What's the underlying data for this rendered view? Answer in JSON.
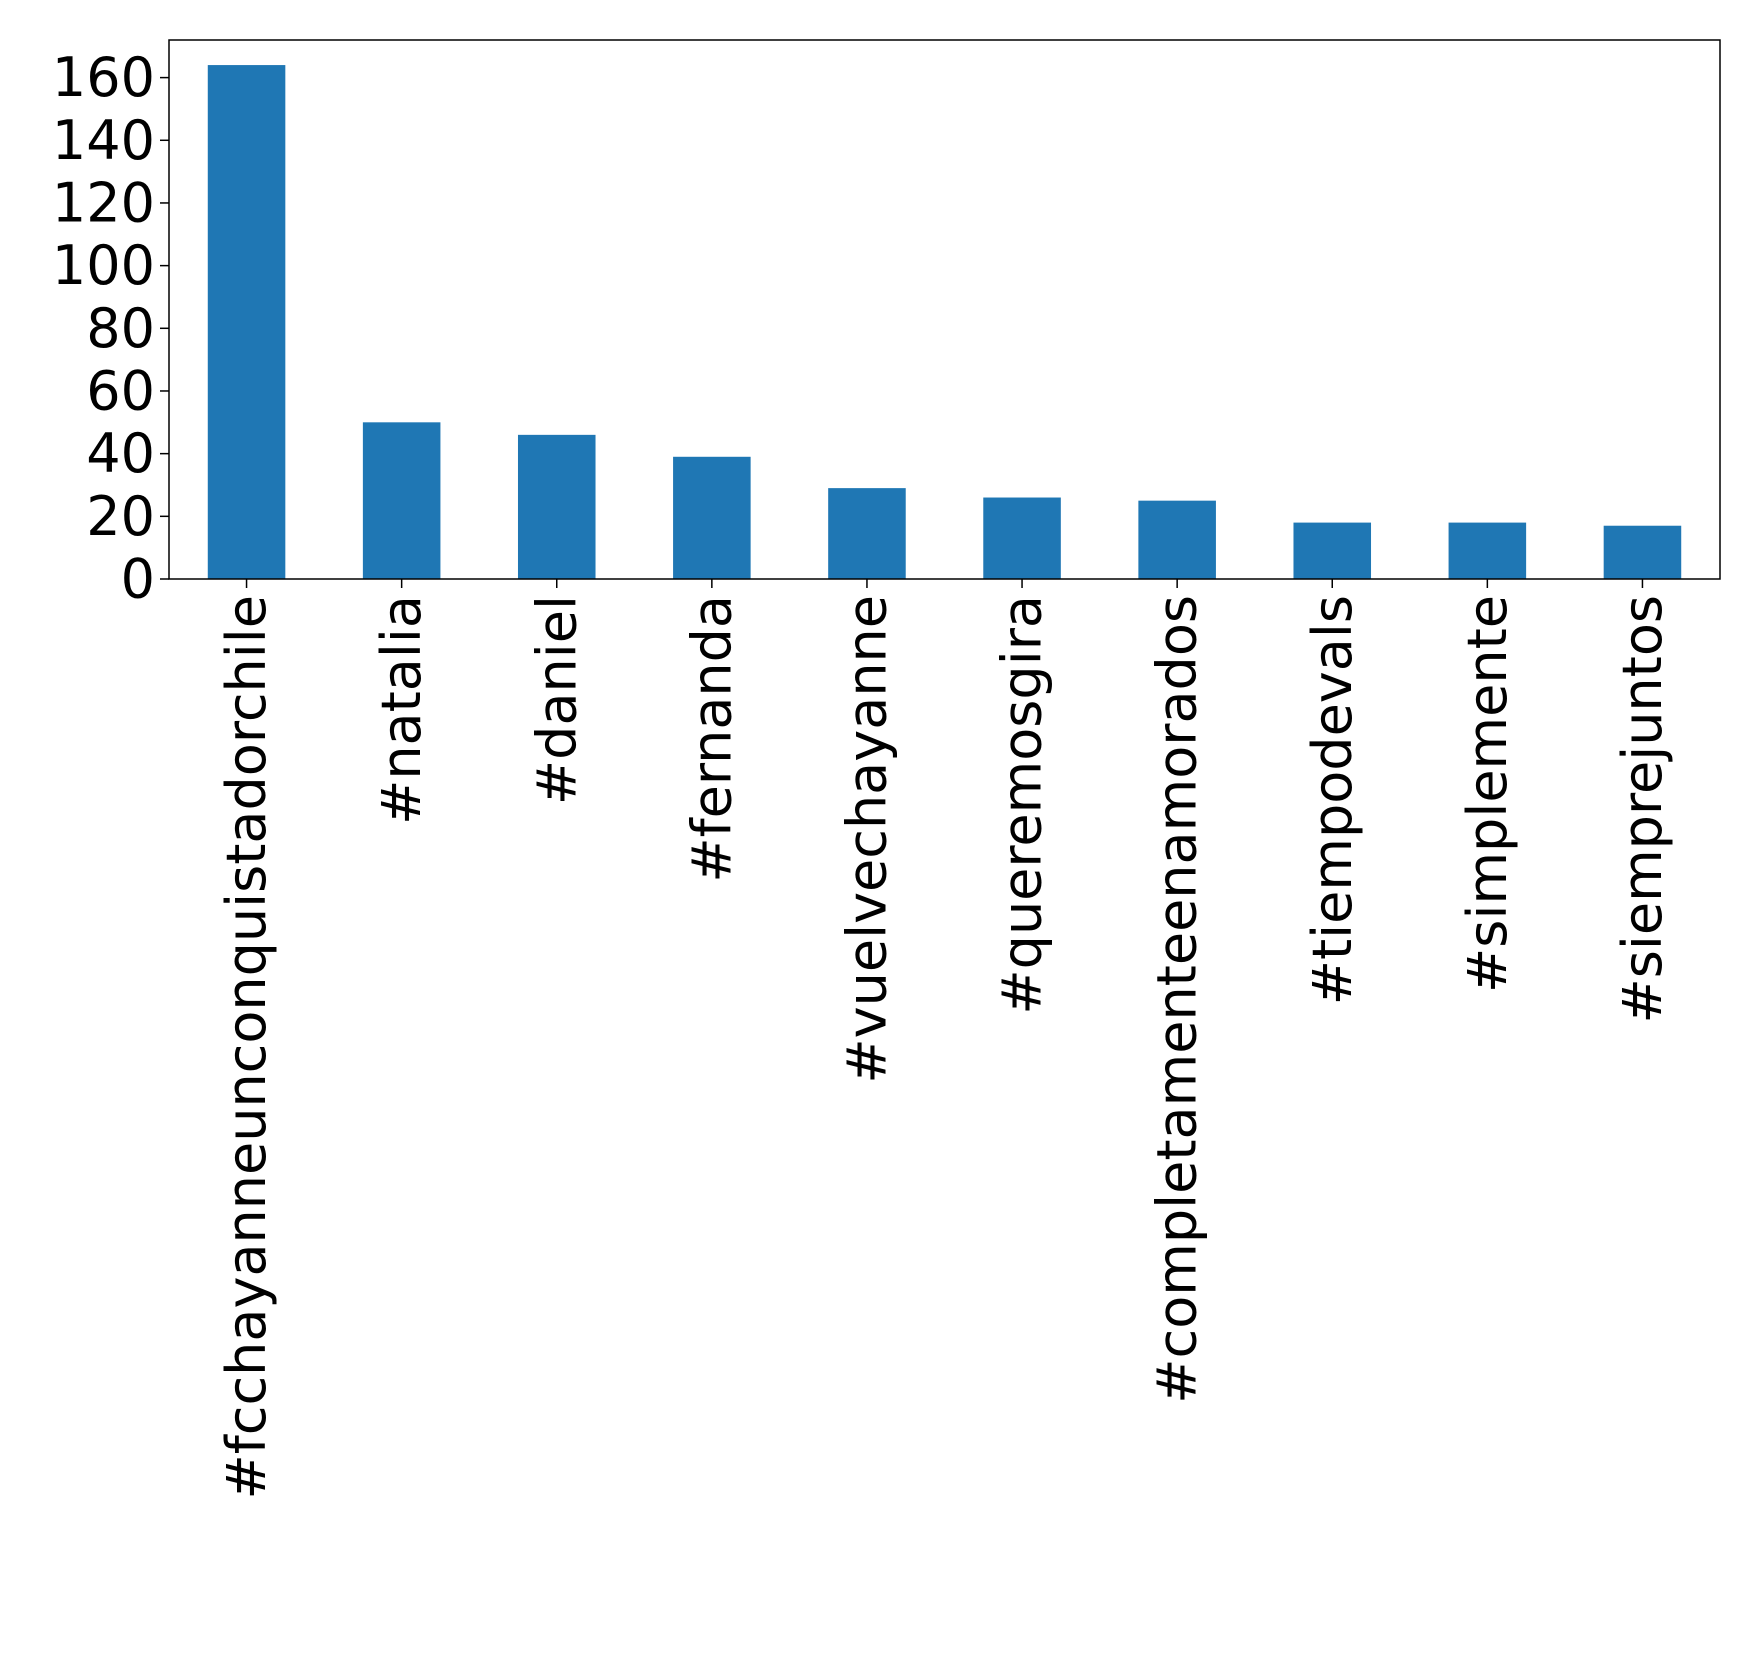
{
  "chart_data": {
    "type": "bar",
    "title": "",
    "xlabel": "",
    "ylabel": "",
    "categories": [
      "#fcchayanneunconquistadorchile",
      "#natalia",
      "#daniel",
      "#fernanda",
      "#vuelvechayanne",
      "#queremosgira",
      "#completamenteenamorados",
      "#tiempodevals",
      "#simplemente",
      "#siemprejuntos"
    ],
    "values": [
      164,
      50,
      46,
      39,
      29,
      26,
      25,
      18,
      18,
      17
    ],
    "ylim": [
      0,
      172
    ],
    "yticks": [
      0,
      20,
      40,
      60,
      80,
      100,
      120,
      140,
      160
    ],
    "ytick_labels": [
      "0",
      "20",
      "40",
      "60",
      "80",
      "100",
      "120",
      "140",
      "160"
    ],
    "bar_color": "#1f77b4",
    "grid": false,
    "legend": "none"
  }
}
